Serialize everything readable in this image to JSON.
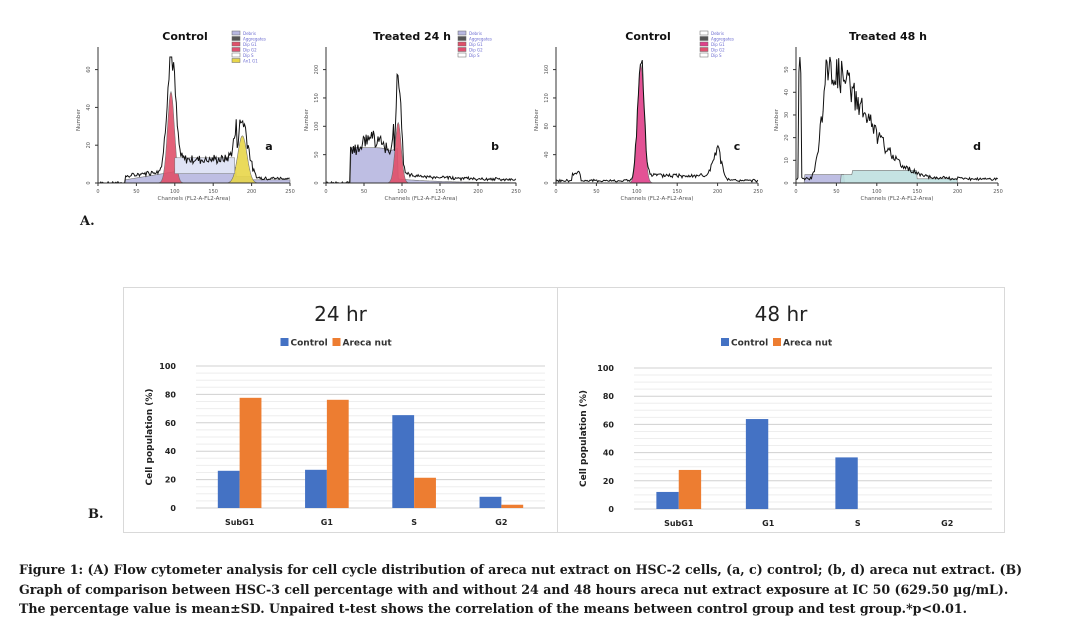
{
  "panel_labels": {
    "A": "A.",
    "B": "B."
  },
  "flow_panels": [
    {
      "id": "a",
      "title": "Control",
      "letter": "a",
      "xlabel": "Channels (FL2-A-FL2-Area)",
      "ylabel": "Number",
      "x_ticks": [
        "0",
        "50",
        "100",
        "150",
        "200",
        "250"
      ],
      "y_ticks": [
        "0",
        "20",
        "40",
        "60"
      ],
      "legend": [
        "Debris",
        "Aggregates",
        "Dip G1",
        "Dip G2",
        "Dip S",
        "An1 G1"
      ],
      "legend_colors": [
        "#b7b7e0",
        "#555555",
        "#e0506a",
        "#e05070",
        "#ffffff",
        "#e8d64a"
      ]
    },
    {
      "id": "b",
      "title": "Treated 24 h",
      "letter": "b",
      "xlabel": "Channels (FL2-A-FL2-Area)",
      "ylabel": "Number",
      "x_ticks": [
        "0",
        "50",
        "100",
        "150",
        "200",
        "250"
      ],
      "y_ticks": [
        "0",
        "50",
        "100",
        "150",
        "200"
      ],
      "legend": [
        "Debris",
        "Aggregates",
        "Dip G1",
        "Dip G2",
        "Dip S"
      ],
      "legend_colors": [
        "#b7b7e0",
        "#555555",
        "#e0506a",
        "#e05070",
        "#ffffff"
      ]
    },
    {
      "id": "c",
      "title": "Control",
      "letter": "c",
      "xlabel": "Channels (FL2-A-FL2-Area)",
      "ylabel": "Number",
      "x_ticks": [
        "0",
        "50",
        "100",
        "150",
        "200",
        "250"
      ],
      "y_ticks": [
        "0",
        "40",
        "80",
        "120",
        "160"
      ],
      "legend": [
        "Debris",
        "Aggregates",
        "Dip G1",
        "Dip G2",
        "Dip S"
      ],
      "legend_colors": [
        "#ffffff",
        "#555555",
        "#e0408a",
        "#e05070",
        "#ffffff"
      ]
    },
    {
      "id": "d",
      "title": "Treated 48 h",
      "letter": "d",
      "xlabel": "Channels (FL2-A-FL2-Area)",
      "ylabel": "Number",
      "x_ticks": [
        "0",
        "50",
        "100",
        "150",
        "200",
        "250"
      ],
      "y_ticks": [
        "0",
        "10",
        "20",
        "30",
        "40",
        "50"
      ],
      "legend": [],
      "legend_colors": []
    }
  ],
  "chart_data": [
    {
      "type": "bar",
      "title": "24 hr",
      "categories": [
        "SubG1",
        "G1",
        "S",
        "G2"
      ],
      "series": [
        {
          "name": "Control",
          "color": "#4472c4",
          "values": [
            26.2,
            26.9,
            65.4,
            7.9
          ]
        },
        {
          "name": "Areca nut",
          "color": "#ed7d31",
          "values": [
            77.6,
            76.2,
            21.3,
            2.3
          ]
        }
      ],
      "xlabel": "",
      "ylabel": "Cell population (%)",
      "ylim": [
        0,
        100
      ],
      "y_ticks": [
        "0",
        "20",
        "40",
        "60",
        "80",
        "100"
      ],
      "grid": true,
      "legend": "top-center"
    },
    {
      "type": "bar",
      "title": "48 hr",
      "categories": [
        "SubG1",
        "G1",
        "S",
        "G2"
      ],
      "series": [
        {
          "name": "Control",
          "color": "#4472c4",
          "values": [
            12.1,
            63.8,
            36.6,
            0
          ]
        },
        {
          "name": "Areca nut",
          "color": "#ed7d31",
          "values": [
            27.7,
            0,
            0,
            0
          ]
        }
      ],
      "xlabel": "",
      "ylabel": "Cell population (%)",
      "ylim": [
        0,
        100
      ],
      "y_ticks": [
        "0",
        "20",
        "40",
        "60",
        "80",
        "100"
      ],
      "grid": true,
      "legend": "top-center"
    }
  ],
  "caption": {
    "lines": [
      "Figure 1: (A) Flow cytometer analysis for cell cycle distribution of areca nut extract on HSC-2 cells, (a, c) control; (b, d) areca nut extract. (B)",
      "Graph of comparison between HSC-3 cell percentage with and without 24 and 48 hours areca nut extract exposure at IC 50 (629.50 µg/mL).",
      "The percentage value is mean±SD. Unpaired t-test shows the correlation of the means between control group and test group.*p<0.01."
    ]
  }
}
